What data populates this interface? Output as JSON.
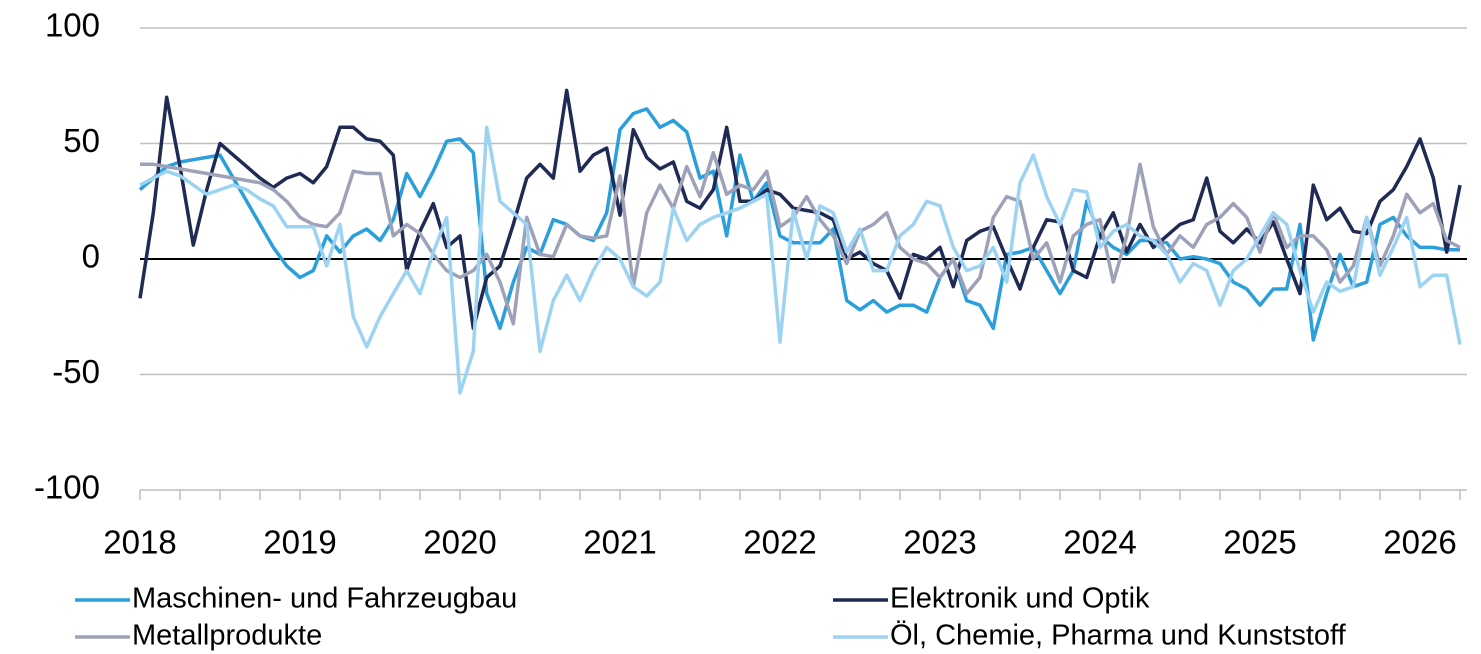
{
  "chart_data": {
    "type": "line",
    "categories": [
      "2018",
      null,
      null,
      null,
      null,
      null,
      null,
      null,
      null,
      null,
      null,
      null,
      "2019",
      null,
      null,
      null,
      null,
      null,
      null,
      null,
      null,
      null,
      null,
      null,
      "2020",
      null,
      null,
      null,
      null,
      null,
      null,
      null,
      null,
      null,
      null,
      null,
      "2021",
      null,
      null,
      null,
      null,
      null,
      null,
      null,
      null,
      null,
      null,
      null,
      "2022",
      null,
      null,
      null,
      null,
      null,
      null,
      null,
      null,
      null,
      null,
      null,
      "2023",
      null,
      null,
      null,
      null,
      null,
      null,
      null,
      null,
      null,
      null,
      null,
      "2024",
      null,
      null,
      null,
      null,
      null,
      null,
      null,
      null,
      null,
      null,
      null,
      "2025",
      null,
      null,
      null,
      null,
      null,
      null,
      null,
      null,
      null,
      null,
      null,
      "2026",
      null,
      null,
      null
    ],
    "series": [
      {
        "name": "Maschinen- und Fahrzeugbau",
        "color": "#2b9fdc",
        "values": [
          30,
          35,
          40,
          42,
          43,
          44,
          45,
          35,
          25,
          15,
          5,
          -3,
          -8,
          -5,
          10,
          3,
          10,
          13,
          8,
          17,
          37,
          27,
          38,
          51,
          52,
          46,
          -15,
          -30,
          -10,
          5,
          2,
          17,
          15,
          10,
          8,
          20,
          56,
          63,
          65,
          57,
          60,
          55,
          35,
          38,
          10,
          45,
          25,
          33,
          10,
          7,
          7,
          7,
          13,
          -18,
          -22,
          -18,
          -23,
          -20,
          -20,
          -23,
          -8,
          0,
          -18,
          -20,
          -30,
          2,
          3,
          5,
          -5,
          -15,
          -5,
          25,
          10,
          5,
          2,
          8,
          8,
          7,
          0,
          1,
          0,
          -2,
          -10,
          -13,
          -20,
          -13,
          -13,
          15,
          -35,
          -15,
          2,
          -12,
          -10,
          15,
          18,
          10,
          5,
          5,
          4,
          4
        ]
      },
      {
        "name": "Elektronik und Optik",
        "color": "#1f2a55",
        "values": [
          -17,
          20,
          70,
          40,
          6,
          30,
          50,
          45,
          40,
          35,
          31,
          35,
          37,
          33,
          40,
          57,
          57,
          52,
          51,
          45,
          -5,
          12,
          24,
          5,
          10,
          -30,
          -8,
          -3,
          15,
          35,
          41,
          35,
          73,
          38,
          45,
          48,
          19,
          56,
          44,
          39,
          42,
          25,
          22,
          30,
          57,
          25,
          25,
          30,
          28,
          22,
          21,
          20,
          17,
          0,
          3,
          -2,
          -5,
          -17,
          2,
          0,
          5,
          -12,
          8,
          12,
          14,
          0,
          -13,
          5,
          17,
          16,
          -5,
          -8,
          10,
          20,
          3,
          15,
          5,
          10,
          15,
          17,
          35,
          12,
          7,
          13,
          7,
          16,
          0,
          -15,
          32,
          17,
          22,
          12,
          11,
          25,
          30,
          40,
          52,
          35,
          3,
          32
        ]
      },
      {
        "name": "Metallprodukte",
        "color": "#9ea2b8",
        "values": [
          41,
          41,
          40,
          39,
          38,
          37,
          36,
          35,
          34,
          33,
          30,
          25,
          18,
          15,
          14,
          20,
          38,
          37,
          37,
          10,
          15,
          11,
          2,
          -5,
          -8,
          -5,
          2,
          -10,
          -28,
          18,
          2,
          1,
          15,
          10,
          9,
          10,
          36,
          -12,
          20,
          32,
          22,
          40,
          27,
          46,
          28,
          32,
          30,
          38,
          14,
          18,
          27,
          17,
          10,
          -2,
          12,
          15,
          20,
          5,
          0,
          -2,
          -8,
          0,
          -15,
          -8,
          18,
          27,
          25,
          0,
          7,
          -10,
          10,
          15,
          17,
          -10,
          10,
          41,
          14,
          2,
          10,
          5,
          15,
          18,
          24,
          18,
          3,
          20,
          5,
          10,
          10,
          4,
          -10,
          -3,
          18,
          -3,
          10,
          28,
          20,
          24,
          8,
          5
        ]
      },
      {
        "name": "Öl, Chemie, Pharma und Kunststoff",
        "color": "#9dd3f2",
        "values": [
          32,
          35,
          38,
          36,
          32,
          28,
          30,
          32,
          30,
          26,
          23,
          14,
          14,
          14,
          -3,
          15,
          -25,
          -38,
          -25,
          -15,
          -5,
          -15,
          3,
          18,
          -58,
          -40,
          57,
          25,
          20,
          15,
          -40,
          -18,
          -7,
          -18,
          -5,
          5,
          0,
          -12,
          -16,
          -10,
          22,
          8,
          15,
          18,
          20,
          22,
          25,
          28,
          -36,
          21,
          0,
          23,
          20,
          3,
          13,
          -5,
          -5,
          10,
          15,
          25,
          23,
          5,
          -5,
          -3,
          5,
          -10,
          33,
          45,
          27,
          15,
          30,
          29,
          5,
          12,
          15,
          10,
          8,
          2,
          -10,
          -2,
          -5,
          -20,
          -5,
          0,
          10,
          20,
          15,
          -5,
          -23,
          -10,
          -14,
          -12,
          18,
          -7,
          5,
          18,
          -12,
          -7,
          -7,
          -37
        ]
      }
    ],
    "ylim": [
      -100,
      100
    ],
    "yticks": [
      -100,
      -50,
      0,
      50,
      100
    ],
    "grid": true
  }
}
